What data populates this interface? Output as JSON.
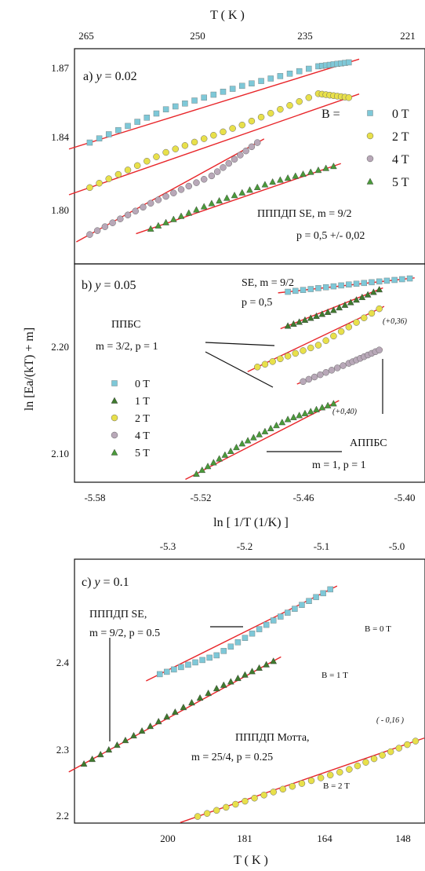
{
  "figure": {
    "top_axis_title": "T ( K )",
    "middle_axis_title": "ln [ 1/T (1/K) ]",
    "bottom_axis_title": "T ( K )",
    "y_axis_title": "ln [Ea/(kT) + m]"
  },
  "panel_a": {
    "label_prefix": "a) ",
    "label_var": "y",
    "label_value": " = 0.02",
    "legend_title": "B =",
    "legend": [
      "0 T",
      "2 T",
      "4 T",
      "5 T"
    ],
    "note_line1": "ПППДП SE, m = 9/2",
    "note_line2": "p = 0,5 +/- 0,02",
    "top_ticks": [
      "265",
      "250",
      "235",
      "221"
    ],
    "y_ticks": [
      "1.87",
      "1.84",
      "1.80"
    ]
  },
  "panel_b": {
    "label_prefix": "b) ",
    "label_var": "y",
    "label_value": " = 0.05",
    "se_line1": "SE, m = 9/2",
    "se_line2": "p = 0,5",
    "ppbs_line1": "ППБС",
    "ppbs_line2": "m = 3/2, p = 1",
    "appbs_line1": "АППБС",
    "appbs_line2": "m = 1, p = 1",
    "shift_a": "(+0,36)",
    "shift_b": "(+0,40)",
    "legend": [
      "0 T",
      "1 T",
      "2 T",
      "4 T",
      "5 T"
    ],
    "x_ticks": [
      "-5.58",
      "-5.52",
      "-5.46",
      "-5.40"
    ],
    "y_ticks": [
      "2.20",
      "2.10"
    ]
  },
  "panel_c": {
    "label_prefix": "c) ",
    "label_var": "y",
    "label_value": " = 0.1",
    "note1_line1": "ПППДП SE,",
    "note1_line2": "m = 9/2, p = 0.5",
    "note2_line1": "ПППДП Мотта,",
    "note2_line2": "m = 25/4, p = 0.25",
    "shift": "( - 0,16 )",
    "series_labels": [
      "B = 0 T",
      "B = 1 T",
      "B = 2 T"
    ],
    "top_ticks": [
      "-5.3",
      "-5.2",
      "-5.1",
      "-5.0"
    ],
    "bottom_ticks": [
      "200",
      "181",
      "164",
      "148"
    ],
    "y_ticks": [
      "2.4",
      "2.3",
      "2.2"
    ]
  },
  "colors": {
    "fit": "#e8262a",
    "s0": "#7ec8d8",
    "s1": "#3f7a2e",
    "s2": "#e8e04a",
    "s4": "#b8a8b8",
    "s5": "#4a9a3a"
  },
  "chart_data": [
    {
      "type": "scatter",
      "title": "a) y = 0.02",
      "xlabel": "T ( K )",
      "ylabel": "ln [Ea/(kT) + m]",
      "xlim": [
        -5.6,
        -5.37
      ],
      "ylim": [
        1.77,
        1.88
      ],
      "series": [
        {
          "name": "0 T",
          "x": [
            -5.59,
            -5.54,
            -5.49,
            -5.44,
            -5.42
          ],
          "values": [
            1.832,
            1.849,
            1.861,
            1.871,
            1.873
          ]
        },
        {
          "name": "2 T",
          "x": [
            -5.59,
            -5.54,
            -5.49,
            -5.44,
            -5.42
          ],
          "values": [
            1.809,
            1.827,
            1.841,
            1.857,
            1.855
          ]
        },
        {
          "name": "4 T",
          "x": [
            -5.59,
            -5.55,
            -5.51,
            -5.48
          ],
          "values": [
            1.785,
            1.801,
            1.815,
            1.832
          ]
        },
        {
          "name": "5 T",
          "x": [
            -5.55,
            -5.51,
            -5.47,
            -5.43
          ],
          "values": [
            1.788,
            1.801,
            1.812,
            1.82
          ]
        }
      ]
    },
    {
      "type": "scatter",
      "title": "b) y = 0.05",
      "xlabel": "ln [ 1/T (1/K) ]",
      "ylabel": "ln [Ea/(kT) + m]",
      "xlim": [
        -5.6,
        -5.37
      ],
      "ylim": [
        2.08,
        2.26
      ],
      "series": [
        {
          "name": "0 T",
          "x": [
            -5.46,
            -5.42,
            -5.38
          ],
          "values": [
            2.237,
            2.243,
            2.248
          ]
        },
        {
          "name": "1 T",
          "x": [
            -5.46,
            -5.43,
            -5.4
          ],
          "values": [
            2.209,
            2.222,
            2.239
          ]
        },
        {
          "name": "2 T",
          "x": [
            -5.48,
            -5.44,
            -5.4
          ],
          "values": [
            2.175,
            2.193,
            2.223
          ]
        },
        {
          "name": "4 T",
          "x": [
            -5.45,
            -5.42,
            -5.4
          ],
          "values": [
            2.163,
            2.178,
            2.189
          ]
        },
        {
          "name": "5 T",
          "x": [
            -5.52,
            -5.49,
            -5.46,
            -5.43
          ],
          "values": [
            2.087,
            2.112,
            2.132,
            2.145
          ]
        }
      ]
    },
    {
      "type": "scatter",
      "title": "c) y = 0.1",
      "xlabel": "T ( K )",
      "ylabel": "ln [Ea/(kT) + m]",
      "xlim": [
        -5.35,
        -4.98
      ],
      "ylim": [
        2.19,
        2.47
      ],
      "series": [
        {
          "name": "B = 0 T",
          "x": [
            -5.26,
            -5.2,
            -5.14,
            -5.08
          ],
          "values": [
            2.348,
            2.368,
            2.405,
            2.438
          ]
        },
        {
          "name": "B = 1 T",
          "x": [
            -5.34,
            -5.27,
            -5.2,
            -5.14
          ],
          "values": [
            2.253,
            2.293,
            2.333,
            2.362
          ]
        },
        {
          "name": "B = 2 T",
          "x": [
            -5.22,
            -5.14,
            -5.06,
            -4.99
          ],
          "values": [
            2.197,
            2.223,
            2.247,
            2.277
          ]
        }
      ]
    }
  ]
}
